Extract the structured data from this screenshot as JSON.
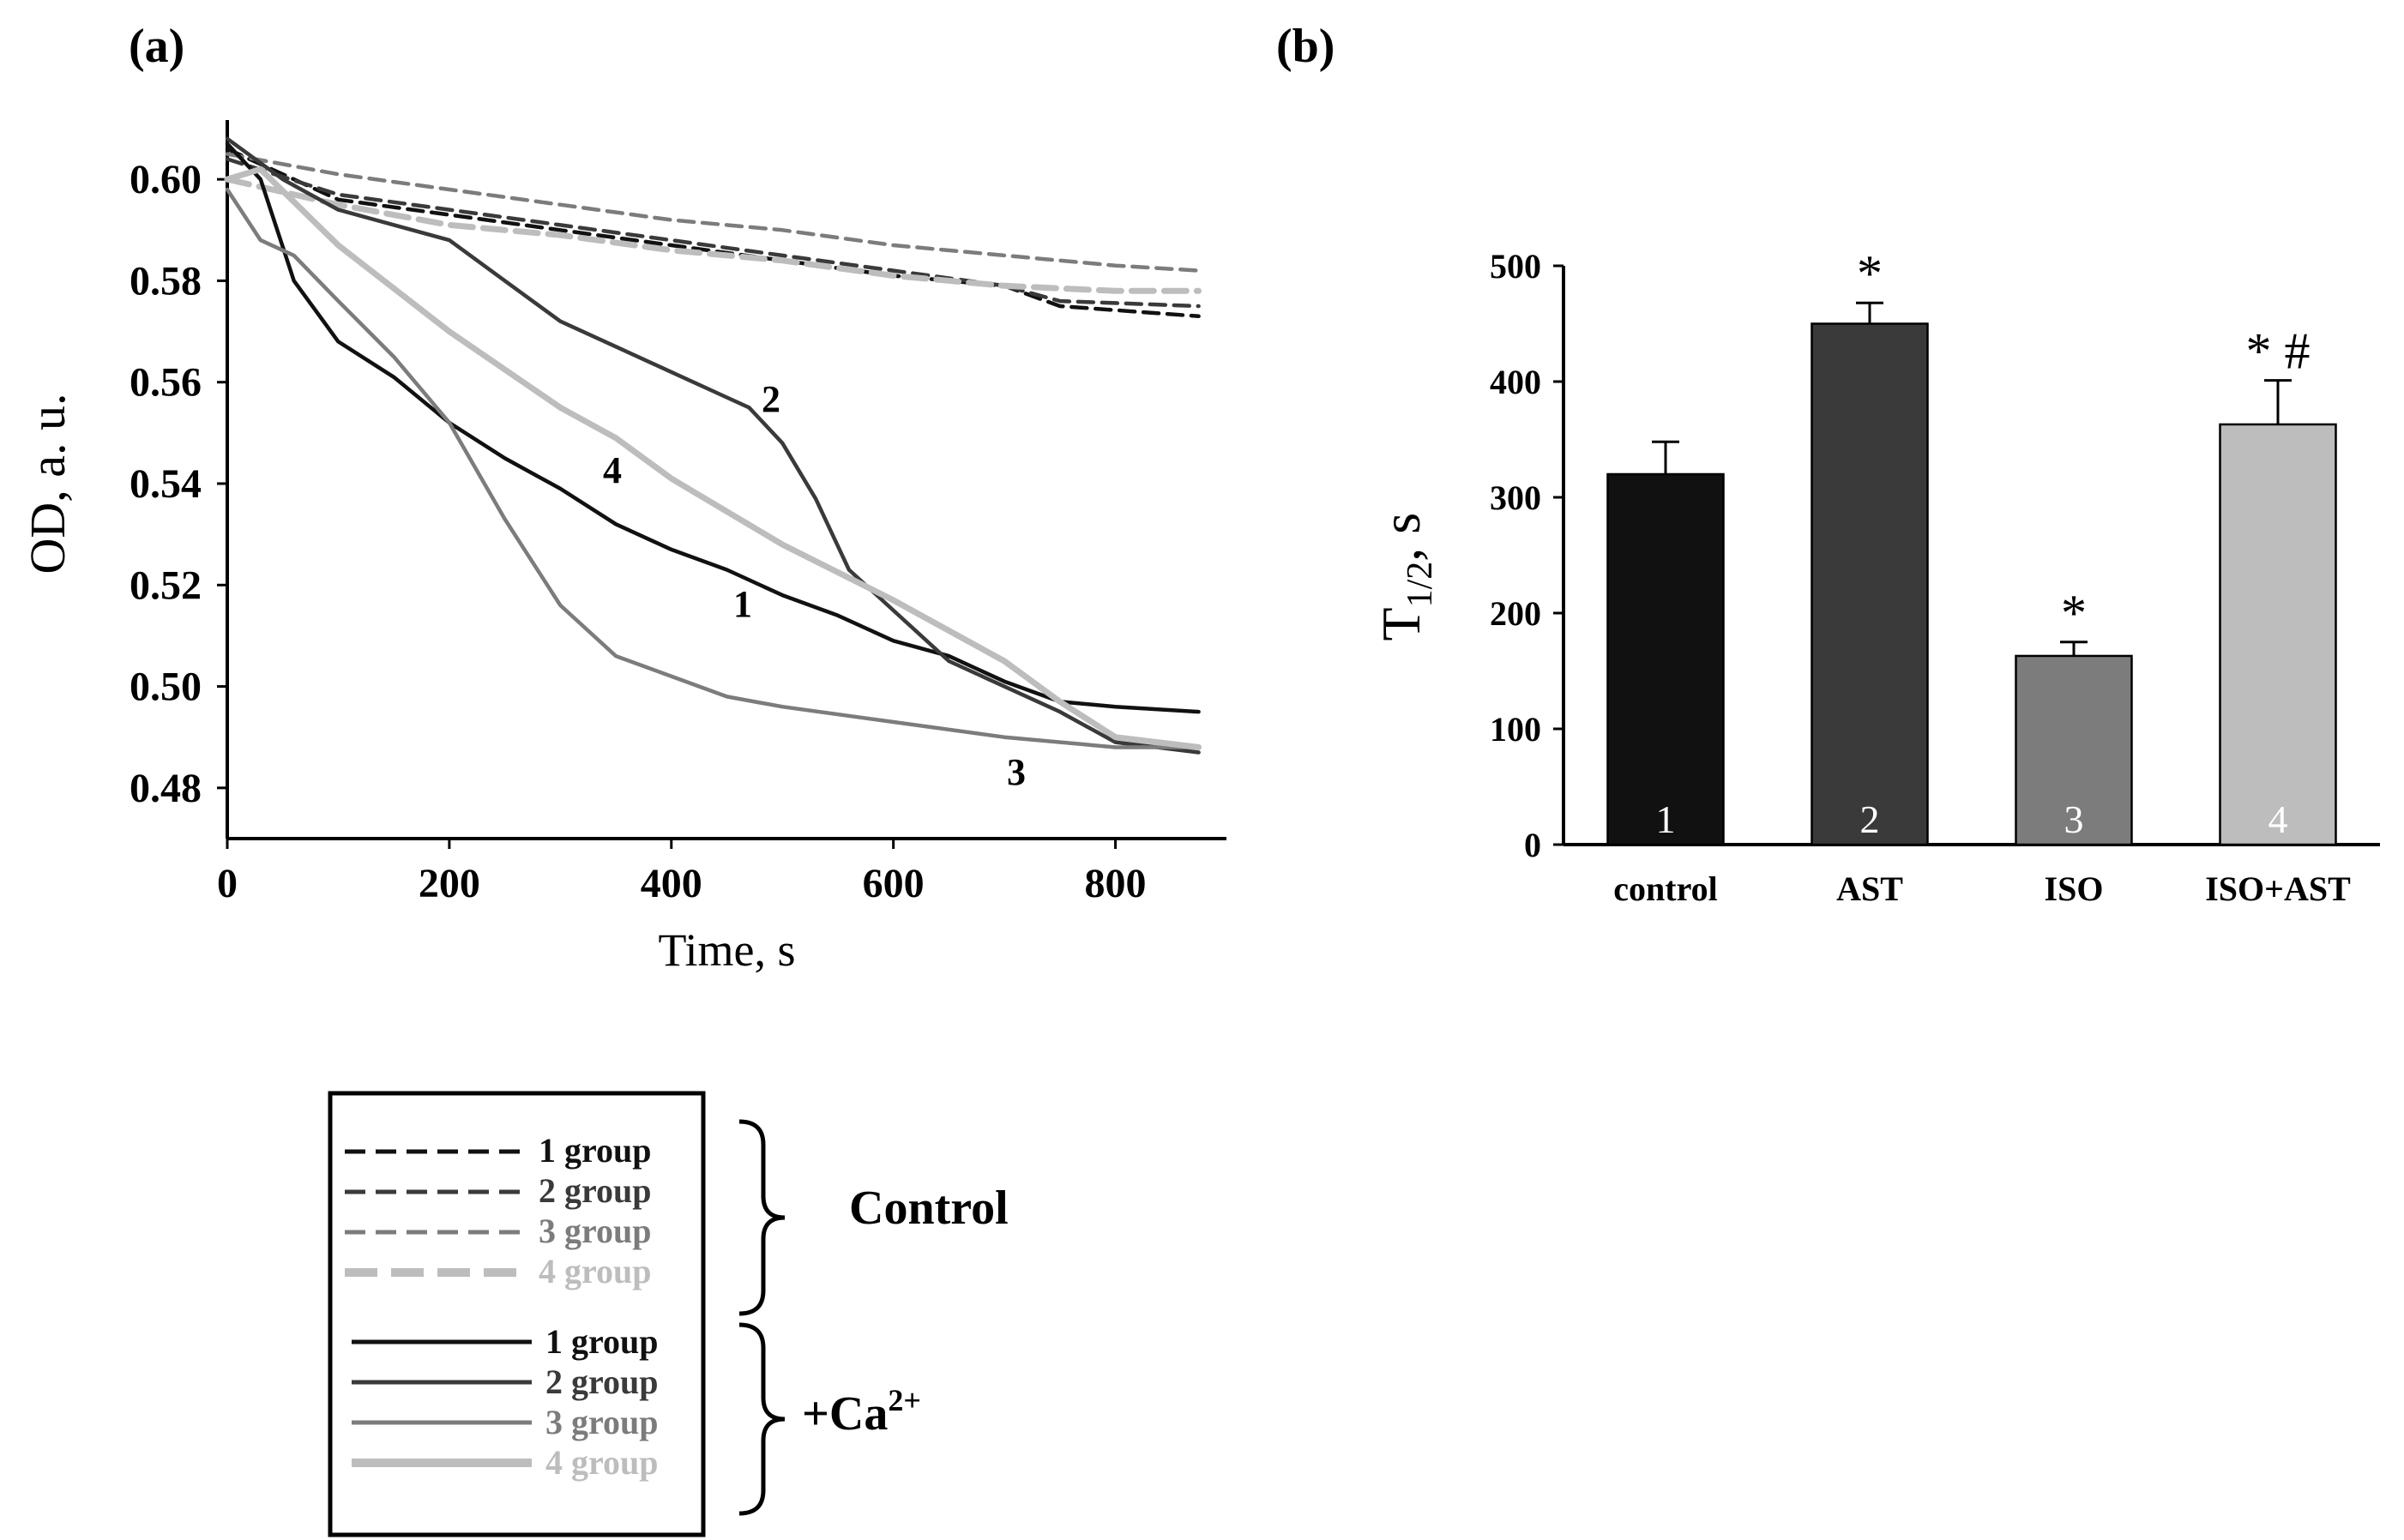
{
  "panel_a": {
    "label": "(a)",
    "curve_labels": [
      "1",
      "2",
      "3",
      "4"
    ]
  },
  "panel_b": {
    "label": "(b)"
  },
  "legend": {
    "control_entries": [
      "1 group",
      "2 group",
      "3 group",
      "4 group"
    ],
    "ca_entries": [
      "1 group",
      "2 group",
      "3 group",
      "4 group"
    ],
    "control_label": "Control",
    "ca_label_base": "+Ca",
    "ca_label_sup": "2+"
  },
  "colors": {
    "group1": "#111111",
    "group2": "#3a3a3a",
    "group3": "#7c7c7c",
    "group4": "#bdbdbd"
  },
  "chart_data": [
    {
      "type": "line",
      "title": "(a)",
      "xlabel": "Time, s",
      "ylabel": "OD, a. u.",
      "xlim": [
        0,
        900
      ],
      "ylim": [
        0.47,
        0.61
      ],
      "xticks": [
        0,
        200,
        400,
        600,
        800
      ],
      "yticks": [
        0.48,
        0.5,
        0.52,
        0.54,
        0.56,
        0.58,
        0.6
      ],
      "ytick_labels": [
        "0.48",
        "0.50",
        "0.52",
        "0.54",
        "0.56",
        "0.58",
        "0.60"
      ],
      "series": [
        {
          "name": "1 group Control",
          "group": 1,
          "style": "dashed",
          "x": [
            0,
            100,
            200,
            300,
            400,
            500,
            600,
            700,
            750,
            875
          ],
          "y": [
            0.606,
            0.596,
            0.593,
            0.59,
            0.587,
            0.584,
            0.581,
            0.579,
            0.575,
            0.573
          ]
        },
        {
          "name": "2 group Control",
          "group": 2,
          "style": "dashed",
          "x": [
            0,
            100,
            200,
            300,
            400,
            500,
            600,
            700,
            750,
            875
          ],
          "y": [
            0.604,
            0.597,
            0.594,
            0.591,
            0.588,
            0.585,
            0.582,
            0.579,
            0.576,
            0.575
          ]
        },
        {
          "name": "3 group Control",
          "group": 3,
          "style": "dashed",
          "x": [
            0,
            100,
            200,
            300,
            400,
            500,
            600,
            700,
            800,
            875
          ],
          "y": [
            0.605,
            0.601,
            0.598,
            0.595,
            0.592,
            0.59,
            0.587,
            0.585,
            0.583,
            0.582
          ]
        },
        {
          "name": "4 group Control",
          "group": 4,
          "style": "dashed",
          "x": [
            0,
            100,
            200,
            300,
            400,
            500,
            600,
            700,
            800,
            875
          ],
          "y": [
            0.6,
            0.595,
            0.591,
            0.589,
            0.586,
            0.584,
            0.581,
            0.579,
            0.578,
            0.578
          ]
        },
        {
          "name": "1 group +Ca2+",
          "group": 1,
          "style": "solid",
          "label": "1",
          "x": [
            0,
            30,
            60,
            100,
            150,
            200,
            250,
            300,
            350,
            400,
            450,
            500,
            550,
            600,
            650,
            700,
            750,
            800,
            875
          ],
          "y": [
            0.607,
            0.6,
            0.58,
            0.568,
            0.561,
            0.552,
            0.545,
            0.539,
            0.532,
            0.527,
            0.523,
            0.518,
            0.514,
            0.509,
            0.506,
            0.501,
            0.497,
            0.496,
            0.495
          ]
        },
        {
          "name": "2 group +Ca2+",
          "group": 2,
          "style": "solid",
          "label": "2",
          "x": [
            0,
            50,
            100,
            200,
            250,
            300,
            350,
            400,
            450,
            470,
            500,
            530,
            560,
            600,
            650,
            700,
            750,
            800,
            875
          ],
          "y": [
            0.608,
            0.6,
            0.594,
            0.588,
            0.58,
            0.572,
            0.567,
            0.562,
            0.557,
            0.555,
            0.548,
            0.537,
            0.523,
            0.515,
            0.505,
            0.5,
            0.495,
            0.489,
            0.487
          ]
        },
        {
          "name": "3 group +Ca2+",
          "group": 3,
          "style": "solid",
          "label": "3",
          "x": [
            0,
            30,
            60,
            100,
            150,
            200,
            250,
            300,
            350,
            400,
            450,
            500,
            600,
            700,
            800,
            875
          ],
          "y": [
            0.598,
            0.588,
            0.585,
            0.576,
            0.565,
            0.552,
            0.533,
            0.516,
            0.506,
            0.502,
            0.498,
            0.496,
            0.493,
            0.49,
            0.488,
            0.488
          ]
        },
        {
          "name": "4 group +Ca2+",
          "group": 4,
          "style": "solid",
          "label": "4",
          "x": [
            0,
            30,
            100,
            200,
            300,
            350,
            400,
            500,
            600,
            700,
            750,
            800,
            875
          ],
          "y": [
            0.6,
            0.602,
            0.587,
            0.57,
            0.555,
            0.549,
            0.541,
            0.528,
            0.517,
            0.505,
            0.497,
            0.49,
            0.488
          ]
        }
      ]
    },
    {
      "type": "bar",
      "title": "(b)",
      "xlabel": "",
      "ylabel_base": "T",
      "ylabel_sub": "1/2",
      "ylabel_unit": ", s",
      "ylim": [
        0,
        500
      ],
      "yticks": [
        0,
        100,
        200,
        300,
        400,
        500
      ],
      "categories": [
        "control",
        "AST",
        "ISO",
        "ISO+AST"
      ],
      "bar_numbers": [
        "1",
        "2",
        "3",
        "4"
      ],
      "values": [
        320,
        450,
        163,
        363
      ],
      "errors": [
        28,
        18,
        12,
        38
      ],
      "annotations": [
        "",
        "*",
        "*",
        "* #"
      ]
    }
  ]
}
